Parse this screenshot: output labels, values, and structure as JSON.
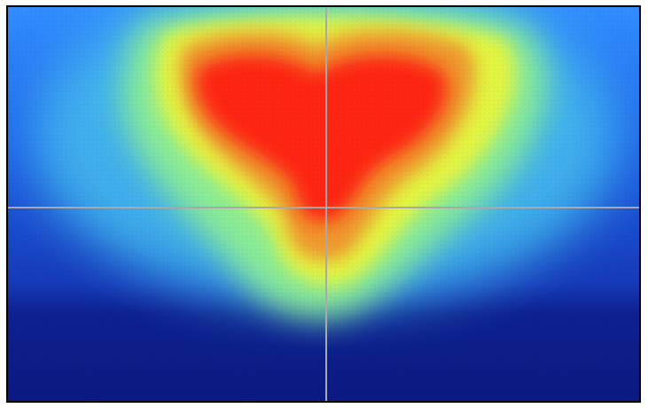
{
  "image": {
    "kind": "false-color intensity heatmap",
    "colormap": [
      "#0a1a8a",
      "#1540d8",
      "#2f8cff",
      "#49d0e6",
      "#8ef08e",
      "#e8f53a",
      "#f0b02a",
      "#f05a16",
      "#ff1a0a"
    ],
    "border_color": "#000000",
    "crosshair_color": "#a9a9a9"
  }
}
